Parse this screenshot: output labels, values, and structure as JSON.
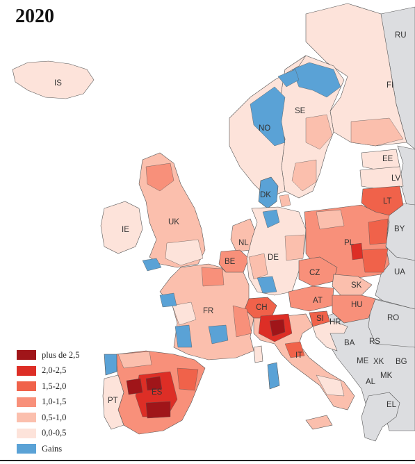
{
  "title": "2020",
  "colors": {
    "sea": "#ffffff",
    "non_eu": "#dcdde0",
    "border": "#555555",
    "gains": "#5aa2d6"
  },
  "legend": [
    {
      "label": "plus de 2,5",
      "color": "#a01519"
    },
    {
      "label": "2,0-2,5",
      "color": "#dd2e26"
    },
    {
      "label": "1,5-2,0",
      "color": "#f0624a"
    },
    {
      "label": "1,0-1,5",
      "color": "#f8907a"
    },
    {
      "label": "0,5-1,0",
      "color": "#fbbfad"
    },
    {
      "label": "0,0-0,5",
      "color": "#fde3da"
    },
    {
      "label": "Gains",
      "color": "#5aa2d6"
    }
  ],
  "countries": {
    "RU": "RU",
    "FI": "FI",
    "IS": "IS",
    "SE": "SE",
    "NO": "NO",
    "EE": "EE",
    "LV": "LV",
    "LT": "LT",
    "DK": "DK",
    "IE": "IE",
    "UK": "UK",
    "BY": "BY",
    "NL": "NL",
    "PL": "PL",
    "DE": "DE",
    "BE": "BE",
    "UA": "UA",
    "CZ": "CZ",
    "SK": "SK",
    "AT": "AT",
    "FR": "FR",
    "CH": "CH",
    "HU": "HU",
    "RO": "RO",
    "SI": "SI",
    "HR": "HR",
    "BA": "BA",
    "RS": "RS",
    "IT": "IT",
    "ME": "ME",
    "XK": "XK",
    "BG": "BG",
    "MK": "MK",
    "AL": "AL",
    "ES": "ES",
    "PT": "PT",
    "EL": "EL"
  }
}
